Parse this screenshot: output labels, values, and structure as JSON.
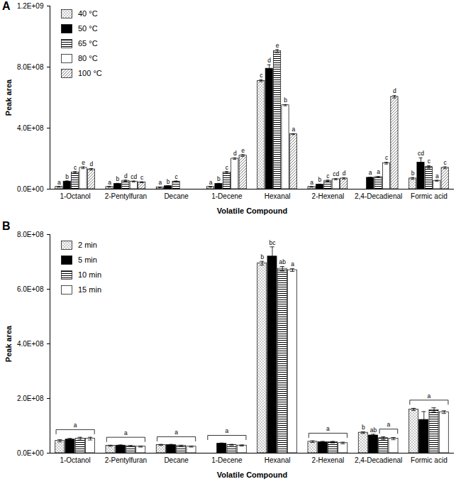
{
  "chart_data": [
    {
      "type": "bar",
      "title": "A",
      "x_label": "Volatile Compound",
      "y_label": "Peak area",
      "categories": [
        "1-Octanol",
        "2-Pentylfuran",
        "Decane",
        "1-Decene",
        "Hexanal",
        "2-Hexenal",
        "2,4-Decadienal",
        "Formic acid"
      ],
      "series": [
        {
          "name": "40 °C",
          "color": "#808080",
          "values": [
            15000000,
            15000000,
            12000000,
            15000000,
            710000000,
            15000000,
            null,
            70000000
          ],
          "errors": [
            2000000,
            2000000,
            2000000,
            2000000,
            6000000,
            2000000,
            null,
            6000000
          ],
          "letters": [
            "a",
            "a",
            "a",
            "a",
            "c",
            "a",
            null,
            "b"
          ]
        },
        {
          "name": "50 °C",
          "color": "#000000",
          "values": [
            50000000,
            35000000,
            20000000,
            35000000,
            790000000,
            30000000,
            75000000,
            175000000
          ],
          "errors": [
            4000000,
            3000000,
            2000000,
            3000000,
            25000000,
            3000000,
            3000000,
            30000000
          ],
          "letters": [
            "b",
            "b",
            "b",
            "b",
            "d",
            "b",
            "a",
            "cd"
          ]
        },
        {
          "name": "65 °C",
          "color": "#000000",
          "values": [
            110000000,
            55000000,
            50000000,
            110000000,
            905000000,
            55000000,
            80000000,
            145000000
          ],
          "errors": [
            5000000,
            4000000,
            3000000,
            5000000,
            10000000,
            4000000,
            3000000,
            8000000
          ],
          "letters": [
            "c",
            "d",
            "c",
            "c",
            "e",
            "c",
            "a",
            "c"
          ]
        },
        {
          "name": "80 °C",
          "color": "#ffffff",
          "values": [
            140000000,
            50000000,
            null,
            200000000,
            550000000,
            65000000,
            170000000,
            55000000
          ],
          "errors": [
            6000000,
            3000000,
            null,
            5000000,
            4000000,
            4000000,
            6000000,
            3000000
          ],
          "letters": [
            "e",
            "cd",
            null,
            "d",
            "b",
            "cd",
            "c",
            "a"
          ]
        },
        {
          "name": "100 °C",
          "color": "#707070",
          "values": [
            130000000,
            45000000,
            null,
            220000000,
            360000000,
            70000000,
            605000000,
            140000000
          ],
          "errors": [
            5000000,
            3000000,
            null,
            6000000,
            3000000,
            4000000,
            8000000,
            6000000
          ],
          "letters": [
            "d",
            "c",
            null,
            "e",
            "a",
            "d",
            "d",
            "c"
          ]
        }
      ],
      "ylim": [
        0,
        1200000000
      ],
      "yticks": [
        {
          "value": 0,
          "label": "0.0E+00"
        },
        {
          "value": 400000000,
          "label": "4.0E+08"
        },
        {
          "value": 800000000,
          "label": "8.0E+08"
        },
        {
          "value": 1200000000,
          "label": "1.2E+09"
        }
      ],
      "grid": false,
      "legend": "top-left"
    },
    {
      "type": "bar",
      "title": "B",
      "x_label": "Volatile Compound",
      "y_label": "Peak area",
      "categories": [
        "1-Octanol",
        "2-Pentylfuran",
        "Decane",
        "1-Decene",
        "Hexanal",
        "2-Hexenal",
        "2,4-Decadienal",
        "Formic acid"
      ],
      "series": [
        {
          "name": "2 min",
          "color": "#808080",
          "values": [
            45000000,
            27000000,
            30000000,
            null,
            695000000,
            42000000,
            75000000,
            160000000
          ],
          "errors": [
            4000000,
            2000000,
            2000000,
            null,
            7000000,
            3000000,
            3000000,
            4000000
          ],
          "letters": [
            null,
            null,
            null,
            null,
            "b",
            null,
            "b",
            null
          ]
        },
        {
          "name": "5 min",
          "color": "#000000",
          "values": [
            50000000,
            28000000,
            30000000,
            35000000,
            720000000,
            40000000,
            65000000,
            122000000
          ],
          "errors": [
            4000000,
            2000000,
            2000000,
            2000000,
            35000000,
            3000000,
            4000000,
            30000000
          ],
          "letters": [
            null,
            null,
            null,
            null,
            "bc",
            null,
            "ab",
            null
          ]
        },
        {
          "name": "10 min",
          "color": "#000000",
          "values": [
            53000000,
            26000000,
            27000000,
            30000000,
            675000000,
            40000000,
            55000000,
            158000000
          ],
          "errors": [
            5000000,
            2000000,
            2000000,
            2000000,
            8000000,
            3000000,
            5000000,
            8000000
          ],
          "letters": [
            null,
            null,
            null,
            null,
            "ab",
            null,
            null,
            null
          ]
        },
        {
          "name": "15 min",
          "color": "#ffffff",
          "values": [
            53000000,
            24000000,
            24000000,
            28000000,
            670000000,
            37000000,
            53000000,
            150000000
          ],
          "errors": [
            5000000,
            2000000,
            2000000,
            2000000,
            5000000,
            3000000,
            4000000,
            5000000
          ],
          "letters": [
            null,
            null,
            null,
            null,
            "a",
            null,
            null,
            null
          ]
        }
      ],
      "annotations": [
        {
          "text": "a",
          "category": "1-Octanol",
          "from": "2 min",
          "to": "15 min"
        },
        {
          "text": "a",
          "category": "2-Pentylfuran",
          "from": "2 min",
          "to": "15 min"
        },
        {
          "text": "a",
          "category": "Decane",
          "from": "2 min",
          "to": "15 min"
        },
        {
          "text": "a",
          "category": "1-Decene",
          "from": "2 min",
          "to": "15 min"
        },
        {
          "text": "a",
          "category": "2-Hexenal",
          "from": "2 min",
          "to": "15 min"
        },
        {
          "text": "a",
          "category": "2,4-Decadienal",
          "from": "10 min",
          "to": "15 min"
        },
        {
          "text": "a",
          "category": "Formic acid",
          "from": "2 min",
          "to": "15 min"
        }
      ],
      "ylim": [
        0,
        800000000
      ],
      "yticks": [
        {
          "value": 0,
          "label": "0.0E+00"
        },
        {
          "value": 200000000,
          "label": "2.0E+08"
        },
        {
          "value": 400000000,
          "label": "4.0E+08"
        },
        {
          "value": 600000000,
          "label": "6.0E+08"
        },
        {
          "value": 800000000,
          "label": "8.0E+08"
        }
      ],
      "grid": false,
      "legend": "top-left"
    }
  ]
}
